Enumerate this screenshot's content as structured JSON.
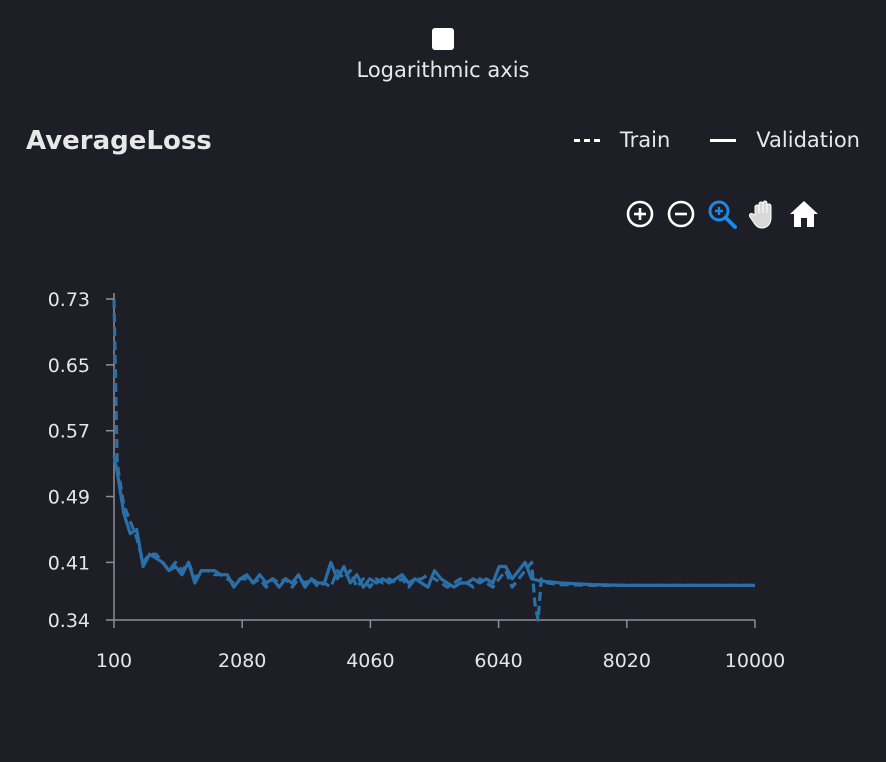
{
  "log_axis": {
    "label": "Logarithmic axis",
    "checked": false
  },
  "toolbar": {
    "tools": [
      "zoom-in-icon",
      "zoom-out-icon",
      "zoom-select-icon",
      "pan-icon",
      "home-icon"
    ],
    "active_color": "#1e88e5",
    "icon_color": "#ffffff"
  },
  "chart_data": {
    "type": "line",
    "title": "AverageLoss",
    "xlabel": "",
    "ylabel": "",
    "xlim": [
      100,
      10000
    ],
    "ylim": [
      0.34,
      0.73
    ],
    "x_ticks": [
      "100",
      "2080",
      "4060",
      "6040",
      "8020",
      "10000"
    ],
    "y_ticks": [
      "0.73",
      "0.65",
      "0.57",
      "0.49",
      "0.41",
      "0.34"
    ],
    "grid": false,
    "legend_placement": "top-right",
    "series_color": "#2a6fa8",
    "series": [
      {
        "name": "Train",
        "style": "dashed",
        "x": [
          100,
          150,
          250,
          350,
          450,
          550,
          650,
          750,
          850,
          950,
          1050,
          1150,
          1250,
          1350,
          1450,
          1550,
          1650,
          1750,
          1850,
          1950,
          2050,
          2150,
          2250,
          2350,
          2450,
          2550,
          2650,
          2750,
          2850,
          2950,
          3050,
          3150,
          3250,
          3350,
          3450,
          3550,
          3650,
          3750,
          3850,
          3950,
          4050,
          4150,
          4250,
          4350,
          4450,
          4550,
          4650,
          4750,
          4850,
          4950,
          5050,
          5150,
          5250,
          5350,
          5450,
          5550,
          5650,
          5750,
          5850,
          5950,
          6050,
          6150,
          6250,
          6350,
          6450,
          6550,
          6600,
          6650,
          6700,
          6800,
          7000,
          7500,
          8000,
          8500,
          9000,
          9500,
          10000
        ],
        "y": [
          0.73,
          0.53,
          0.48,
          0.46,
          0.44,
          0.41,
          0.42,
          0.42,
          0.41,
          0.4,
          0.41,
          0.4,
          0.41,
          0.39,
          0.4,
          0.4,
          0.395,
          0.395,
          0.39,
          0.385,
          0.39,
          0.39,
          0.385,
          0.39,
          0.38,
          0.39,
          0.385,
          0.39,
          0.38,
          0.39,
          0.385,
          0.39,
          0.38,
          0.385,
          0.38,
          0.4,
          0.39,
          0.4,
          0.38,
          0.39,
          0.38,
          0.39,
          0.385,
          0.39,
          0.385,
          0.39,
          0.38,
          0.39,
          0.39,
          0.395,
          0.39,
          0.385,
          0.38,
          0.385,
          0.39,
          0.385,
          0.38,
          0.39,
          0.385,
          0.38,
          0.39,
          0.4,
          0.38,
          0.39,
          0.4,
          0.41,
          0.36,
          0.34,
          0.39,
          0.385,
          0.383,
          0.382,
          0.382,
          0.382,
          0.382,
          0.382,
          0.382
        ]
      },
      {
        "name": "Validation",
        "style": "solid",
        "x": [
          100,
          150,
          250,
          350,
          450,
          550,
          650,
          750,
          850,
          950,
          1050,
          1150,
          1250,
          1350,
          1450,
          1550,
          1650,
          1750,
          1850,
          1950,
          2050,
          2150,
          2250,
          2350,
          2450,
          2550,
          2650,
          2750,
          2850,
          2950,
          3050,
          3150,
          3250,
          3350,
          3450,
          3550,
          3650,
          3750,
          3850,
          3950,
          4050,
          4150,
          4250,
          4350,
          4450,
          4550,
          4650,
          4750,
          4850,
          4950,
          5050,
          5150,
          5250,
          5350,
          5450,
          5550,
          5650,
          5750,
          5850,
          5950,
          6050,
          6150,
          6250,
          6350,
          6450,
          6550,
          6650,
          6750,
          7000,
          7500,
          8000,
          8500,
          9000,
          9500,
          10000
        ],
        "y": [
          0.54,
          0.52,
          0.47,
          0.445,
          0.45,
          0.405,
          0.42,
          0.415,
          0.41,
          0.4,
          0.405,
          0.395,
          0.41,
          0.385,
          0.4,
          0.4,
          0.4,
          0.395,
          0.395,
          0.38,
          0.39,
          0.395,
          0.385,
          0.395,
          0.385,
          0.39,
          0.38,
          0.39,
          0.385,
          0.395,
          0.38,
          0.39,
          0.385,
          0.385,
          0.41,
          0.39,
          0.405,
          0.385,
          0.395,
          0.38,
          0.39,
          0.385,
          0.39,
          0.385,
          0.39,
          0.395,
          0.385,
          0.39,
          0.385,
          0.38,
          0.4,
          0.39,
          0.385,
          0.38,
          0.385,
          0.385,
          0.39,
          0.385,
          0.39,
          0.385,
          0.405,
          0.405,
          0.39,
          0.4,
          0.41,
          0.39,
          0.388,
          0.387,
          0.385,
          0.383,
          0.382,
          0.382,
          0.382,
          0.382,
          0.382
        ]
      }
    ]
  }
}
